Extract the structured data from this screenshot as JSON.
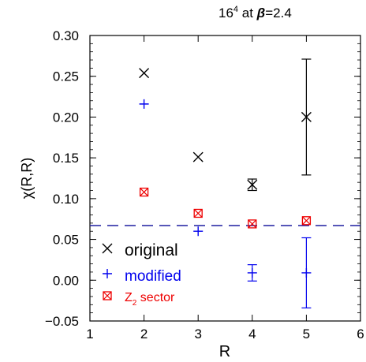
{
  "chart_data": {
    "type": "scatter",
    "title_text": "16",
    "title_sup": "4",
    "title_mid": " at ",
    "title_beta": "β",
    "title_value": "=2.4",
    "xlabel": "R",
    "ylabel": "χ(R,R)",
    "xlim": [
      1,
      6
    ],
    "ylim": [
      -0.05,
      0.3
    ],
    "xticks": [
      1,
      2,
      3,
      4,
      5,
      6
    ],
    "xtick_labels": [
      "1",
      "2",
      "3",
      "4",
      "5",
      "6"
    ],
    "yticks": [
      -0.05,
      0.0,
      0.05,
      0.1,
      0.15,
      0.2,
      0.25,
      0.3
    ],
    "ytick_labels": [
      "−0.05",
      "0.00",
      "0.05",
      "0.10",
      "0.15",
      "0.20",
      "0.25",
      "0.30"
    ],
    "reference_line": {
      "y": 0.067,
      "style": "dashed",
      "color": "#1f1fa0"
    },
    "series": [
      {
        "name": "original",
        "marker": "x",
        "color": "#000000",
        "x": [
          2,
          3,
          4,
          5
        ],
        "y": [
          0.254,
          0.151,
          0.117,
          0.2
        ],
        "yerr": [
          0,
          0,
          0.007,
          0.071
        ]
      },
      {
        "name": "modified",
        "marker": "plus",
        "color": "#0000ee",
        "x": [
          2,
          3,
          4,
          5
        ],
        "y": [
          0.216,
          0.06,
          0.009,
          0.009
        ],
        "yerr": [
          0,
          0,
          0.01,
          0.043
        ]
      },
      {
        "name": "Z",
        "name_sub": "2",
        "name_rest": " sector",
        "marker": "boxed-x",
        "color": "#ee0000",
        "x": [
          2,
          3,
          4,
          5
        ],
        "y": [
          0.108,
          0.082,
          0.069,
          0.073
        ],
        "yerr": [
          0,
          0,
          0,
          0
        ]
      }
    ],
    "legend_position": "lower-left"
  }
}
